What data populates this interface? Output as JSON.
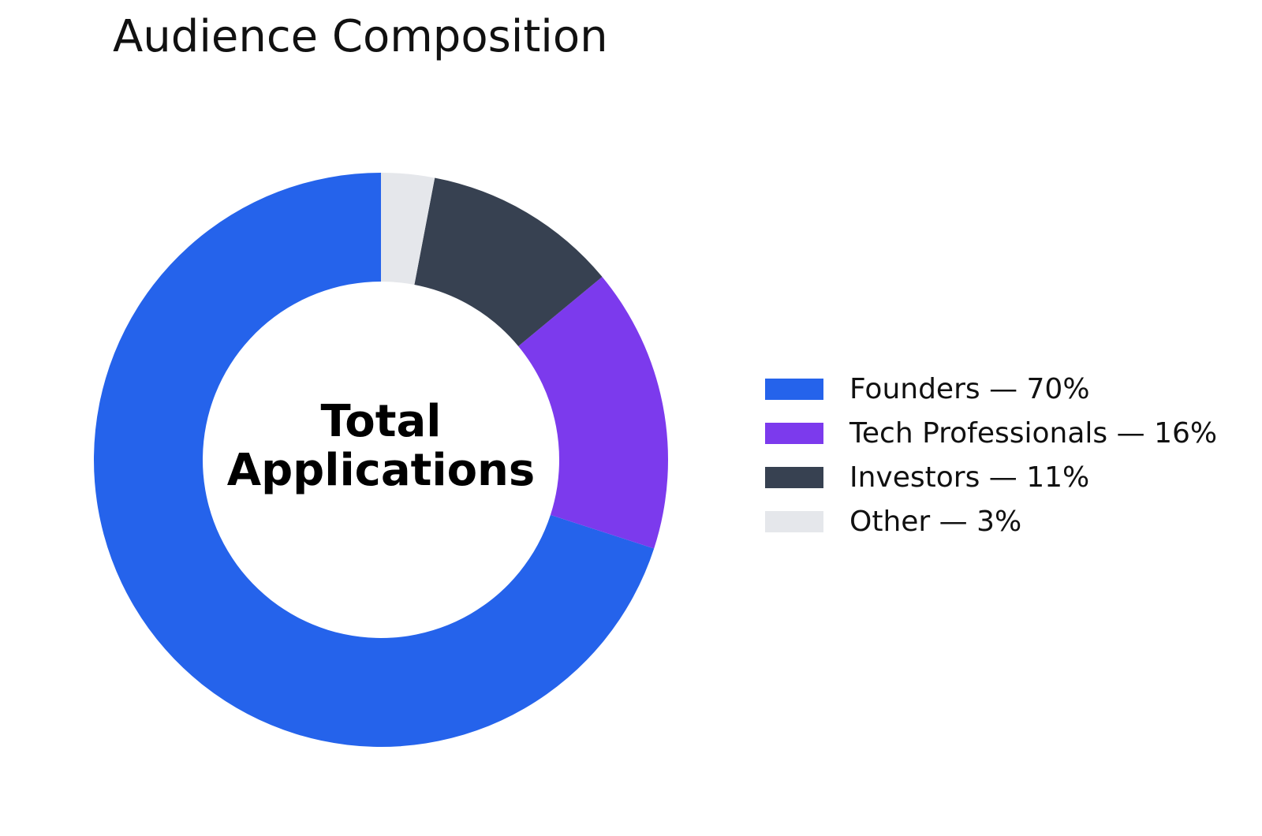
{
  "chart_data": {
    "type": "pie",
    "variant": "donut",
    "title": "Audience Composition",
    "center_text": [
      "Total",
      "Applications"
    ],
    "categories": [
      "Founders",
      "Tech Professionals",
      "Investors",
      "Other"
    ],
    "values": [
      70,
      16,
      11,
      3
    ],
    "unit": "%",
    "colors": [
      "#2563EB",
      "#7C3AED",
      "#374151",
      "#E5E7EB"
    ],
    "legend_labels": [
      "Founders — 70%",
      "Tech Professionals — 16%",
      "Investors — 11%",
      "Other — 3%"
    ],
    "legend_position": "right",
    "start_angle": "top",
    "direction": "counterclockwise"
  }
}
